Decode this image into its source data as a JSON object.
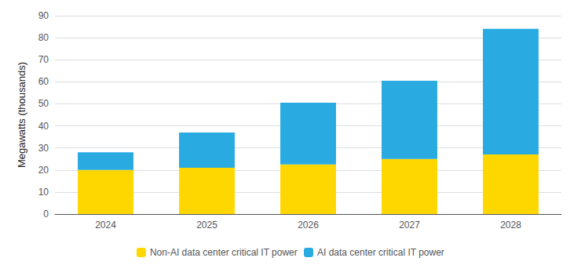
{
  "chart_data": {
    "type": "bar",
    "stacked": true,
    "categories": [
      "2024",
      "2025",
      "2026",
      "2027",
      "2028"
    ],
    "series": [
      {
        "name": "Non-AI data center critical IT power",
        "color": "#FFD700",
        "values": [
          20,
          21,
          22.5,
          25,
          27
        ]
      },
      {
        "name": "AI data center critical IT power",
        "color": "#29ABE2",
        "values": [
          8,
          16,
          28,
          35.5,
          57
        ]
      }
    ],
    "ylabel": "Megawatts (thousands)",
    "ylim": [
      0,
      90
    ],
    "yticks": [
      0,
      10,
      20,
      30,
      40,
      50,
      60,
      70,
      80,
      90
    ],
    "grid": true,
    "legend": "bottom"
  }
}
